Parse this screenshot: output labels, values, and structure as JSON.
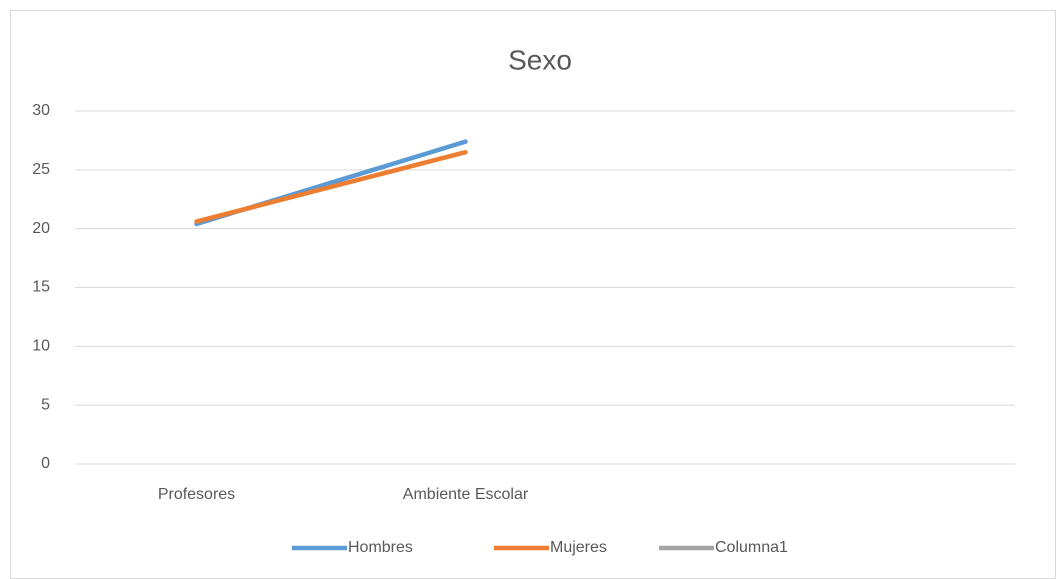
{
  "chart_data": {
    "type": "line",
    "title": "Sexo",
    "categories": [
      "Profesores",
      "Ambiente Escolar",
      null,
      null
    ],
    "series": [
      {
        "name": "Hombres",
        "color": "#5b9bd5",
        "values": [
          20.4,
          27.4,
          null,
          null
        ]
      },
      {
        "name": "Mujeres",
        "color": "#ed7d31",
        "values": [
          20.6,
          26.5,
          null,
          null
        ]
      },
      {
        "name": "Columna1",
        "color": "#a5a5a5",
        "values": [
          null,
          null,
          null,
          null
        ]
      }
    ],
    "ylim": [
      0,
      30
    ],
    "yticks": [
      0,
      5,
      10,
      15,
      20,
      25,
      30
    ],
    "grid": true,
    "legend": "bottom"
  }
}
